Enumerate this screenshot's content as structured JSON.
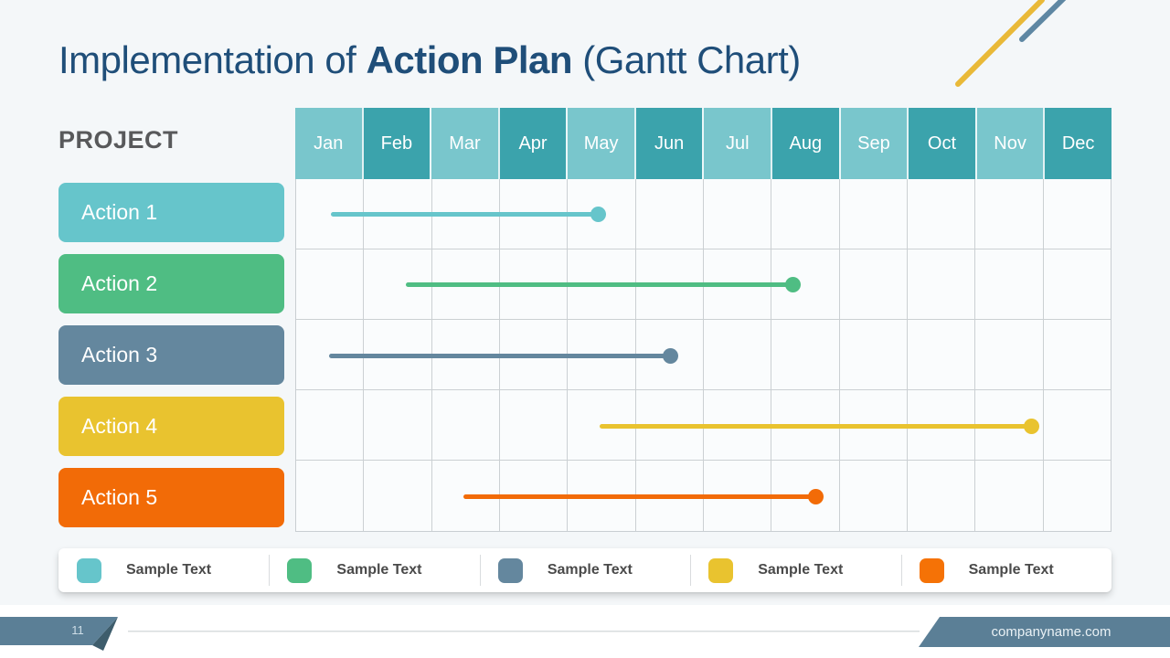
{
  "slide": {
    "title": {
      "prefix": "Implementation of ",
      "bold": "Action Plan",
      "suffix": " (Gantt Chart)"
    },
    "project_label": "PROJECT",
    "footer": {
      "page_number": "11",
      "website": "companyname.com"
    }
  },
  "colors": {
    "title_navy": "#1F4E79",
    "header_teal_light": "#79C6CC",
    "header_teal_dark": "#3BA3AC",
    "grid_line": "#CBD0D3",
    "grid_background": "#FAFCFD",
    "footer_slate": "#5B7F96",
    "footer_fold": "#3E5D6C",
    "footer_divider": "#D8DCDE",
    "deco_yellow": "#E9B938",
    "deco_slate": "#5E87A3"
  },
  "chart_data": {
    "type": "gantt",
    "title": "Implementation of Action Plan (Gantt Chart)",
    "x_axis_unit": "month",
    "x_range": [
      0,
      12
    ],
    "grid": true,
    "months": [
      "Jan",
      "Feb",
      "Mar",
      "Apr",
      "May",
      "Jun",
      "Jul",
      "Aug",
      "Sep",
      "Oct",
      "Nov",
      "Dec"
    ],
    "tasks": [
      {
        "label": "Action 1",
        "color": "#66C5CB",
        "start_month": 0.52,
        "end_month": 4.46
      },
      {
        "label": "Action 2",
        "color": "#4FBD83",
        "start_month": 1.63,
        "end_month": 7.32
      },
      {
        "label": "Action 3",
        "color": "#64879E",
        "start_month": 0.5,
        "end_month": 5.51
      },
      {
        "label": "Action 4",
        "color": "#E9C32F",
        "start_month": 4.47,
        "end_month": 10.83
      },
      {
        "label": "Action 5",
        "color": "#F26B07",
        "start_month": 2.47,
        "end_month": 7.65
      }
    ],
    "legend": [
      {
        "label": "Sample Text",
        "color": "#66C5CB"
      },
      {
        "label": "Sample Text",
        "color": "#4FBD83"
      },
      {
        "label": "Sample Text",
        "color": "#64879E"
      },
      {
        "label": "Sample Text",
        "color": "#E9C32F"
      },
      {
        "label": "Sample Text",
        "color": "#F57206"
      }
    ],
    "legend_position": "bottom"
  }
}
